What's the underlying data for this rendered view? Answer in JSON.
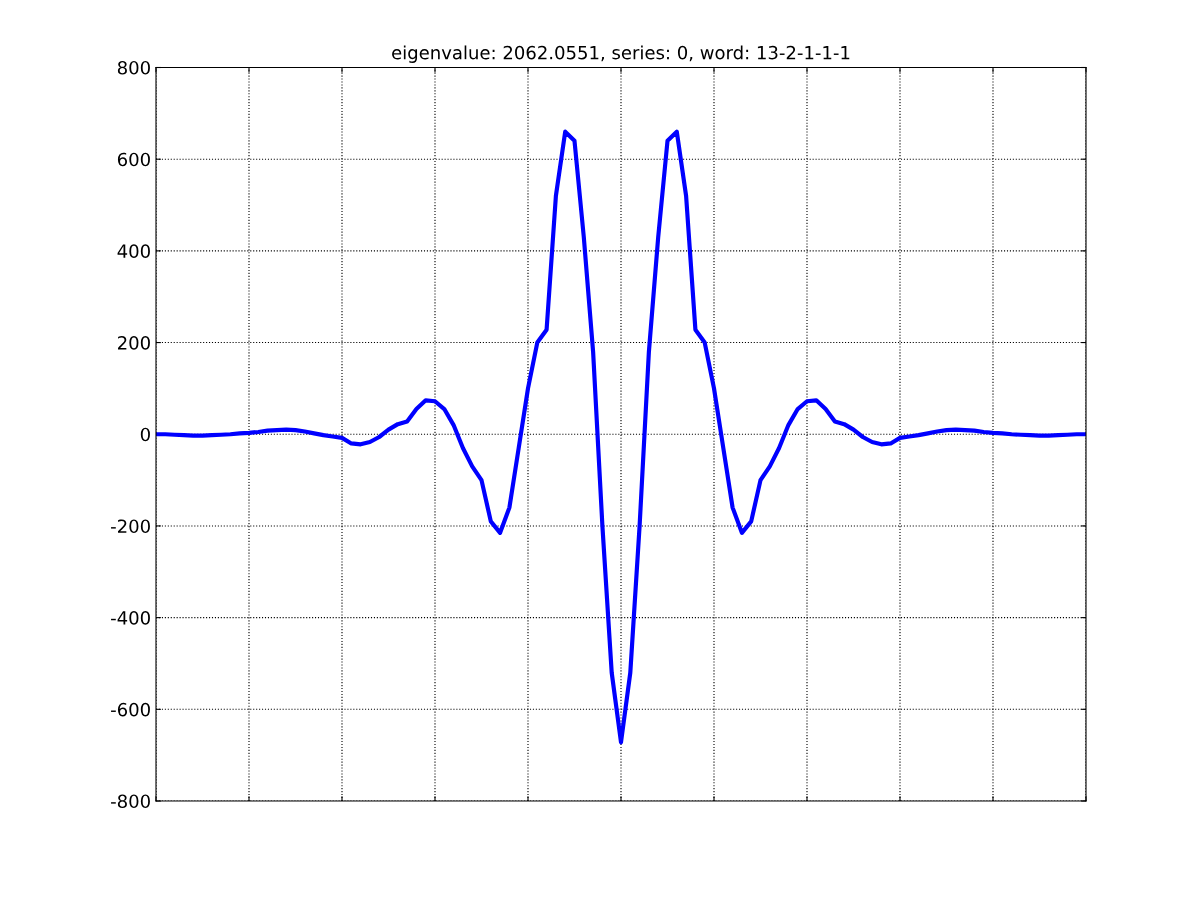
{
  "chart_data": {
    "type": "line",
    "title": "eigenvalue: 2062.0551, series: 0, word: 13-2-1-1-1",
    "categories": [
      null,
      null,
      null,
      null,
      null,
      null,
      null,
      null,
      null,
      null,
      null,
      null,
      null,
      null,
      null,
      null,
      null,
      null,
      null,
      null,
      null,
      null,
      null,
      null,
      null,
      null,
      null,
      null,
      null,
      null,
      null,
      null,
      null,
      null,
      null,
      null,
      null,
      null,
      null,
      null,
      null,
      null,
      null,
      null,
      null,
      null,
      null,
      null,
      null,
      null,
      null,
      null,
      null,
      null,
      null,
      null,
      null,
      null,
      null,
      null,
      null,
      null,
      null,
      null,
      null,
      null,
      null,
      null,
      null,
      null,
      null,
      null,
      null,
      null,
      null,
      null,
      null,
      null,
      null,
      null,
      null,
      null,
      null,
      null,
      null,
      null,
      null,
      null,
      null,
      null,
      null,
      null,
      null,
      null,
      null,
      null,
      null,
      null,
      null,
      null,
      null
    ],
    "series": [
      {
        "color": "#0000ff",
        "values": [
          0,
          0,
          -1,
          -2,
          -3,
          -3,
          -2,
          -1,
          0,
          2,
          3,
          5,
          8,
          9,
          10,
          9,
          6,
          2,
          -2,
          -5,
          -8,
          -20,
          -22,
          -17,
          -6,
          10,
          22,
          28,
          55,
          74,
          72,
          55,
          20,
          -30,
          -70,
          -100,
          -190,
          -215,
          -160,
          -30,
          100,
          200,
          228,
          520,
          660,
          640,
          430,
          180,
          -200,
          -520,
          -672,
          -520,
          -200,
          180,
          430,
          640,
          660,
          520,
          228,
          200,
          100,
          -30,
          -160,
          -215,
          -190,
          -100,
          -70,
          -30,
          20,
          55,
          72,
          74,
          55,
          28,
          22,
          10,
          -6,
          -17,
          -22,
          -20,
          -8,
          -5,
          -2,
          2,
          6,
          9,
          10,
          9,
          8,
          5,
          3,
          2,
          0,
          -1,
          -2,
          -3,
          -3,
          -2,
          -1,
          0,
          0
        ]
      }
    ],
    "ylim": [
      -800,
      800
    ],
    "yticks": [
      -800,
      -600,
      -400,
      -200,
      0,
      200,
      400,
      600,
      800
    ],
    "grid": true,
    "tick_labels": "y",
    "line_style": "solid",
    "marker": "none"
  }
}
